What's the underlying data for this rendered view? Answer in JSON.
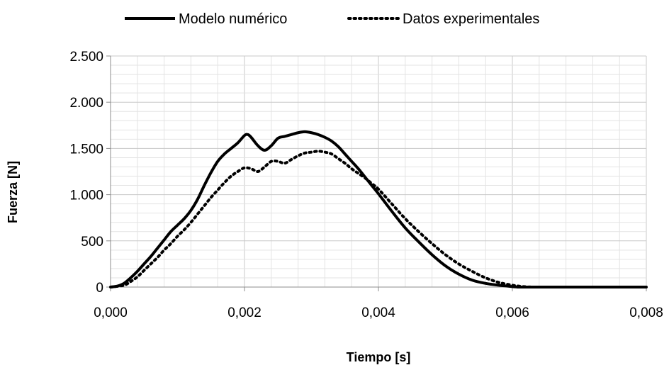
{
  "chart_data": {
    "type": "line",
    "title": "",
    "xlabel": "Tiempo [s]",
    "ylabel": "Fuerza [N]",
    "xlim": [
      0,
      0.008
    ],
    "ylim": [
      0,
      2500
    ],
    "x_ticks": [
      0,
      0.002,
      0.004,
      0.006,
      0.008
    ],
    "x_tick_labels": [
      "0,000",
      "0,002",
      "0,004",
      "0,006",
      "0,008"
    ],
    "y_ticks": [
      0,
      500,
      1000,
      1500,
      2000,
      2500
    ],
    "y_tick_labels": [
      "0",
      "500",
      "1.000",
      "1.500",
      "2.000",
      "2.500"
    ],
    "grid": true,
    "legend_position": "top",
    "series": [
      {
        "name": "Modelo numérico",
        "style": "solid",
        "color": "#000000",
        "x": [
          0,
          0.0001,
          0.0002,
          0.0003,
          0.0004,
          0.0005,
          0.0006,
          0.0007,
          0.0008,
          0.0009,
          0.001,
          0.0011,
          0.0012,
          0.0013,
          0.0014,
          0.0015,
          0.0016,
          0.0017,
          0.0018,
          0.0019,
          0.002,
          0.00205,
          0.0021,
          0.0022,
          0.0023,
          0.0024,
          0.0025,
          0.0026,
          0.0027,
          0.0028,
          0.0029,
          0.003,
          0.0031,
          0.0032,
          0.0033,
          0.0034,
          0.0035,
          0.0036,
          0.0037,
          0.0038,
          0.0039,
          0.004,
          0.0042,
          0.0044,
          0.0046,
          0.0048,
          0.005,
          0.0052,
          0.0054,
          0.0056,
          0.0058,
          0.006,
          0.0061,
          0.0062,
          0.0064,
          0.0066,
          0.007,
          0.0075,
          0.008
        ],
        "y": [
          0,
          10,
          40,
          100,
          170,
          250,
          330,
          420,
          510,
          600,
          670,
          740,
          830,
          950,
          1100,
          1240,
          1360,
          1440,
          1500,
          1560,
          1640,
          1650,
          1620,
          1530,
          1480,
          1530,
          1610,
          1630,
          1650,
          1670,
          1680,
          1670,
          1650,
          1620,
          1580,
          1520,
          1440,
          1360,
          1280,
          1190,
          1100,
          1010,
          820,
          640,
          490,
          350,
          230,
          140,
          75,
          40,
          20,
          5,
          0,
          0,
          0,
          0,
          0,
          0,
          0
        ]
      },
      {
        "name": "Datos experimentales",
        "style": "dotted",
        "color": "#000000",
        "x": [
          0,
          0.0002,
          0.0003,
          0.0004,
          0.0005,
          0.0006,
          0.0007,
          0.0008,
          0.0009,
          0.001,
          0.0011,
          0.0012,
          0.0013,
          0.0014,
          0.0015,
          0.0016,
          0.0017,
          0.0018,
          0.0019,
          0.002,
          0.0021,
          0.0022,
          0.0023,
          0.0024,
          0.0025,
          0.0026,
          0.0027,
          0.0028,
          0.0029,
          0.003,
          0.0031,
          0.0032,
          0.0033,
          0.0034,
          0.0035,
          0.0036,
          0.0037,
          0.0038,
          0.0039,
          0.004,
          0.0042,
          0.0044,
          0.0046,
          0.0048,
          0.005,
          0.0052,
          0.0054,
          0.0056,
          0.0058,
          0.006,
          0.0061,
          0.0062,
          0.0063,
          0.0064,
          0.007,
          0.0075,
          0.008
        ],
        "y": [
          0,
          20,
          60,
          110,
          180,
          250,
          320,
          400,
          470,
          550,
          620,
          700,
          790,
          880,
          970,
          1050,
          1130,
          1200,
          1250,
          1290,
          1280,
          1250,
          1300,
          1360,
          1360,
          1340,
          1380,
          1420,
          1450,
          1460,
          1470,
          1460,
          1440,
          1390,
          1340,
          1280,
          1230,
          1180,
          1120,
          1060,
          900,
          740,
          600,
          470,
          350,
          250,
          170,
          100,
          50,
          20,
          10,
          3,
          0,
          0,
          0,
          0,
          0
        ]
      }
    ]
  }
}
